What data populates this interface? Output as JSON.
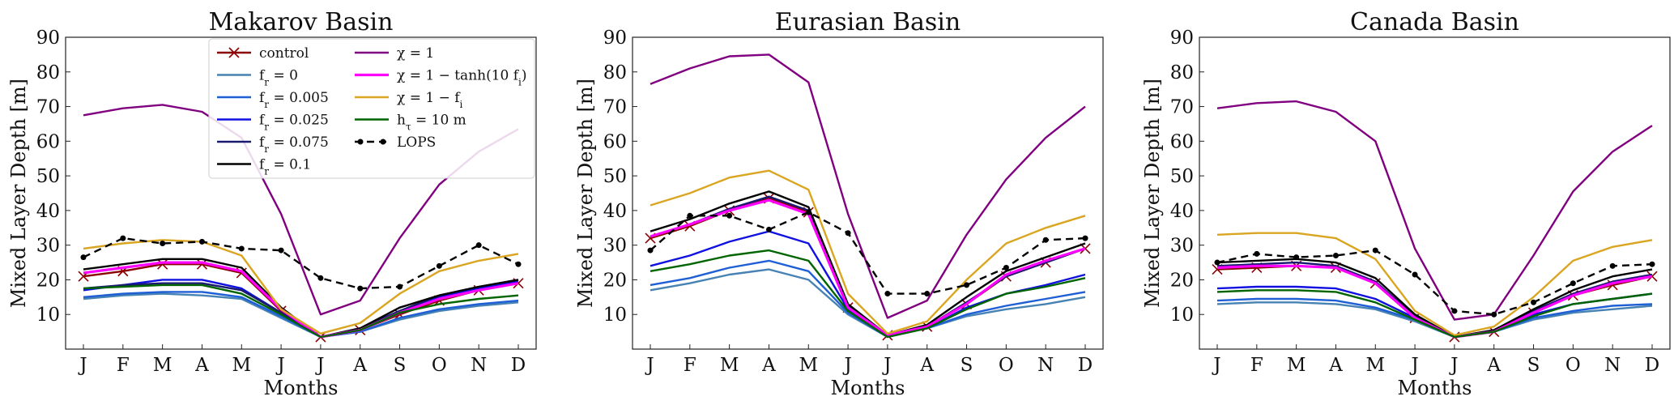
{
  "figure": {
    "legend_location": "top-left of first panel"
  },
  "chart_data": [
    {
      "type": "line",
      "title": "Makarov Basin",
      "xlabel": "Months",
      "ylabel": "Mixed Layer Depth [m]",
      "categories": [
        "J",
        "F",
        "M",
        "A",
        "M",
        "J",
        "J",
        "A",
        "S",
        "O",
        "N",
        "D"
      ],
      "ylim": [
        0,
        90
      ],
      "yticks": [
        10,
        20,
        30,
        40,
        50,
        60,
        70,
        80,
        90
      ],
      "grid": false,
      "legend": true,
      "series": [
        {
          "name": "control",
          "color": "#8b0000",
          "marker": "x",
          "values": [
            21,
            22.5,
            24.5,
            24.5,
            22,
            11,
            3.5,
            5.5,
            10,
            14,
            17,
            19
          ]
        },
        {
          "name": "f_r = 0",
          "color": "#4682b4",
          "values": [
            14.5,
            15.5,
            16,
            15.5,
            14.5,
            9,
            3.5,
            5,
            8.5,
            11,
            12.5,
            13.5
          ]
        },
        {
          "name": "f_r = 0.005",
          "color": "#1f5fd6",
          "values": [
            15,
            16,
            16.5,
            16.5,
            15,
            9.5,
            3.5,
            5,
            9,
            11.5,
            13,
            14
          ]
        },
        {
          "name": "f_r = 0.025",
          "color": "#1010e0",
          "values": [
            17,
            18.5,
            20,
            20,
            17.5,
            10.5,
            3.5,
            6,
            11,
            15,
            17.5,
            19.5
          ]
        },
        {
          "name": "f_r = 0.075",
          "color": "#1a1a70",
          "values": [
            17.5,
            18.5,
            19,
            19,
            17,
            10.5,
            3.5,
            6,
            11,
            15.5,
            18,
            20
          ]
        },
        {
          "name": "f_r = 0.1",
          "color": "#000000",
          "values": [
            23,
            24.5,
            26,
            26,
            23.5,
            12,
            3.5,
            6,
            12,
            15.5,
            18,
            20
          ]
        },
        {
          "name": "χ = 1",
          "color": "#800080",
          "values": [
            67.5,
            69.5,
            70.5,
            68.5,
            61,
            39,
            10,
            14,
            32,
            47.5,
            57,
            63.5
          ]
        },
        {
          "name": "χ = 1 − tanh(10 f_i)",
          "color": "#ff00ff",
          "values": [
            22,
            23.5,
            25,
            25,
            22.5,
            11.5,
            3.5,
            5.5,
            10.5,
            14.5,
            17,
            19
          ]
        },
        {
          "name": "χ = 1 − f_i",
          "color": "#daa520",
          "values": [
            29,
            30.5,
            31.5,
            31,
            27,
            11.5,
            4.5,
            7.5,
            16,
            22.5,
            25.5,
            27.5
          ]
        },
        {
          "name": "h_τ = 10 m",
          "color": "#006400",
          "values": [
            17.5,
            18,
            18.5,
            18.5,
            16,
            10,
            3.5,
            5.5,
            10.5,
            13,
            14.5,
            15.5
          ]
        },
        {
          "name": "LOPS",
          "color": "#000000",
          "dashed": true,
          "marker": "dot",
          "values": [
            26.5,
            32,
            30.5,
            31,
            29,
            28.5,
            20.5,
            17.5,
            18,
            24,
            30,
            24.5
          ]
        }
      ]
    },
    {
      "type": "line",
      "title": "Eurasian Basin",
      "xlabel": "Months",
      "ylabel": "Mixed Layer Depth [m]",
      "categories": [
        "J",
        "F",
        "M",
        "A",
        "M",
        "J",
        "J",
        "A",
        "S",
        "O",
        "N",
        "D"
      ],
      "ylim": [
        0,
        90
      ],
      "yticks": [
        10,
        20,
        30,
        40,
        50,
        60,
        70,
        80,
        90
      ],
      "grid": false,
      "legend": false,
      "series": [
        {
          "name": "control",
          "color": "#8b0000",
          "marker": "x",
          "values": [
            32,
            35.5,
            40,
            43.5,
            39.5,
            12,
            4,
            6.5,
            13,
            21,
            25,
            29
          ]
        },
        {
          "name": "f_r = 0",
          "color": "#4682b4",
          "values": [
            17,
            19,
            21.5,
            23,
            20,
            10,
            3.5,
            6,
            9.5,
            11.5,
            13,
            15
          ]
        },
        {
          "name": "f_r = 0.005",
          "color": "#1f5fd6",
          "values": [
            18.5,
            20.5,
            23.5,
            25.5,
            22.5,
            10.5,
            3.5,
            6,
            10,
            12.5,
            14.5,
            16.5
          ]
        },
        {
          "name": "f_r = 0.025",
          "color": "#1010e0",
          "values": [
            24,
            27,
            31,
            34,
            30.5,
            11.5,
            4,
            6,
            12,
            16,
            18.5,
            21.5
          ]
        },
        {
          "name": "f_r = 0.075",
          "color": "#1a1a70",
          "values": [
            32.5,
            36,
            40.5,
            44,
            40,
            12.5,
            4,
            6.5,
            13.5,
            21,
            25,
            29
          ]
        },
        {
          "name": "f_r = 0.1",
          "color": "#000000",
          "values": [
            34,
            37.5,
            42,
            45.5,
            41,
            13,
            4,
            7,
            15,
            22.5,
            26.5,
            30.5
          ]
        },
        {
          "name": "χ = 1",
          "color": "#800080",
          "values": [
            76.5,
            81,
            84.5,
            85,
            77,
            39,
            9,
            14,
            33,
            49,
            61,
            70
          ]
        },
        {
          "name": "χ = 1 − tanh(10 f_i)",
          "color": "#ff00ff",
          "values": [
            32.5,
            36,
            40,
            43,
            39,
            12,
            4,
            6.5,
            13,
            21.5,
            25.5,
            29
          ]
        },
        {
          "name": "χ = 1 − f_i",
          "color": "#daa520",
          "values": [
            41.5,
            45,
            49.5,
            51.5,
            46,
            16,
            4.5,
            8,
            20,
            30.5,
            35,
            38.5
          ]
        },
        {
          "name": "h_τ = 10 m",
          "color": "#006400",
          "values": [
            22.5,
            24.5,
            27,
            28.5,
            25.5,
            11,
            3.5,
            6,
            11.5,
            16,
            18,
            20.5
          ]
        },
        {
          "name": "LOPS",
          "color": "#000000",
          "dashed": true,
          "marker": "dot",
          "values": [
            28.5,
            38.5,
            38.5,
            34.5,
            39.5,
            33.5,
            16,
            16,
            18.5,
            23.5,
            31.5,
            32
          ]
        }
      ]
    },
    {
      "type": "line",
      "title": "Canada Basin",
      "xlabel": "Months",
      "ylabel": "Mixed Layer Depth [m]",
      "categories": [
        "J",
        "F",
        "M",
        "A",
        "M",
        "J",
        "J",
        "A",
        "S",
        "O",
        "N",
        "D"
      ],
      "ylim": [
        0,
        90
      ],
      "yticks": [
        10,
        20,
        30,
        40,
        50,
        60,
        70,
        80,
        90
      ],
      "grid": false,
      "legend": false,
      "series": [
        {
          "name": "control",
          "color": "#8b0000",
          "marker": "x",
          "values": [
            23,
            23.5,
            24,
            23.5,
            19,
            9,
            3.5,
            5,
            10.5,
            15.5,
            18.5,
            21
          ]
        },
        {
          "name": "f_r = 0",
          "color": "#4682b4",
          "values": [
            13,
            13.5,
            13.5,
            13,
            11.5,
            8,
            3.5,
            5,
            8.5,
            10.5,
            11.5,
            12.5
          ]
        },
        {
          "name": "f_r = 0.005",
          "color": "#1f5fd6",
          "values": [
            14,
            14.5,
            14.5,
            14,
            12,
            8.5,
            3.5,
            5,
            9,
            11,
            12.5,
            13
          ]
        },
        {
          "name": "f_r = 0.025",
          "color": "#1010e0",
          "values": [
            17.5,
            18,
            18,
            17.5,
            14.5,
            9,
            3.5,
            5.5,
            10,
            13,
            14.5,
            16
          ]
        },
        {
          "name": "f_r = 0.075",
          "color": "#1a1a70",
          "values": [
            24,
            24.5,
            25,
            24,
            19.5,
            9.5,
            3.5,
            5.5,
            11,
            16,
            19.5,
            21.5
          ]
        },
        {
          "name": "f_r = 0.1",
          "color": "#000000",
          "values": [
            25,
            25.5,
            26,
            25,
            20.5,
            10,
            3.5,
            5.5,
            11.5,
            17,
            21,
            23
          ]
        },
        {
          "name": "χ = 1",
          "color": "#800080",
          "values": [
            69.5,
            71,
            71.5,
            68.5,
            60,
            29,
            8.5,
            10,
            27,
            45.5,
            57,
            64.5
          ]
        },
        {
          "name": "χ = 1 − tanh(10 f_i)",
          "color": "#ff00ff",
          "values": [
            23.5,
            24,
            24,
            23.5,
            19,
            9,
            3.5,
            5,
            10.5,
            15.5,
            19,
            21
          ]
        },
        {
          "name": "χ = 1 − f_i",
          "color": "#daa520",
          "values": [
            33,
            33.5,
            33.5,
            32,
            26,
            11,
            4,
            6.5,
            15,
            25.5,
            29.5,
            31.5
          ]
        },
        {
          "name": "h_τ = 10 m",
          "color": "#006400",
          "values": [
            16.5,
            17,
            17,
            16.5,
            13.5,
            8.5,
            3.5,
            5,
            9.5,
            13,
            14.5,
            16
          ]
        },
        {
          "name": "LOPS",
          "color": "#000000",
          "dashed": true,
          "marker": "dot",
          "values": [
            25,
            27.5,
            26.5,
            27,
            28.5,
            21.5,
            11,
            10,
            13.5,
            19,
            24,
            24.5
          ]
        }
      ]
    }
  ]
}
